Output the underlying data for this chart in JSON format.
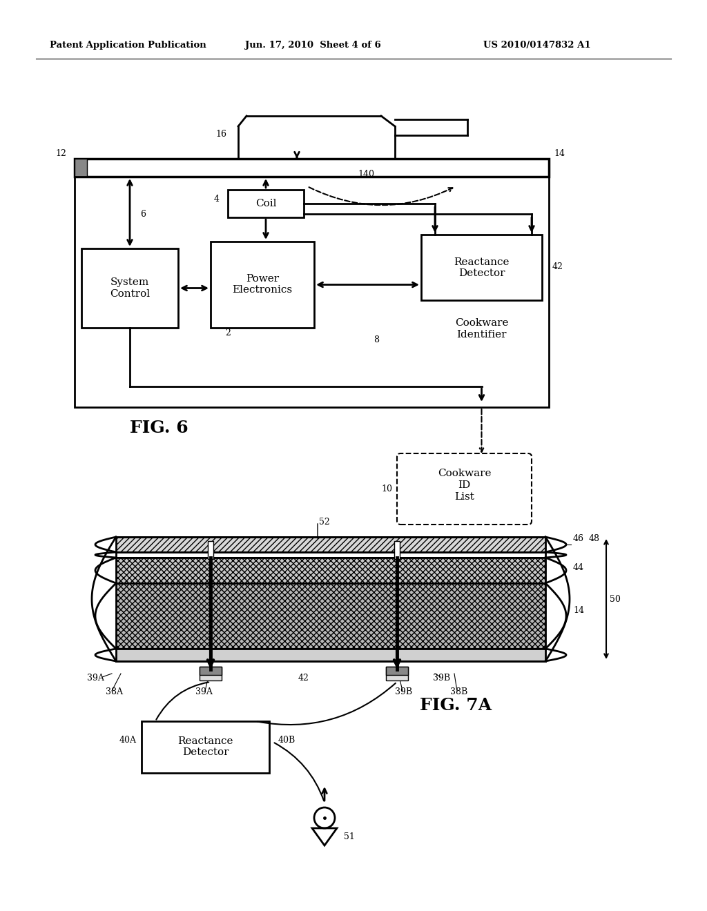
{
  "bg_color": "#ffffff",
  "header_left": "Patent Application Publication",
  "header_mid": "Jun. 17, 2010  Sheet 4 of 6",
  "header_right": "US 2010/0147832 A1",
  "fig6_label": "FIG. 6",
  "fig7a_label": "FIG. 7A"
}
